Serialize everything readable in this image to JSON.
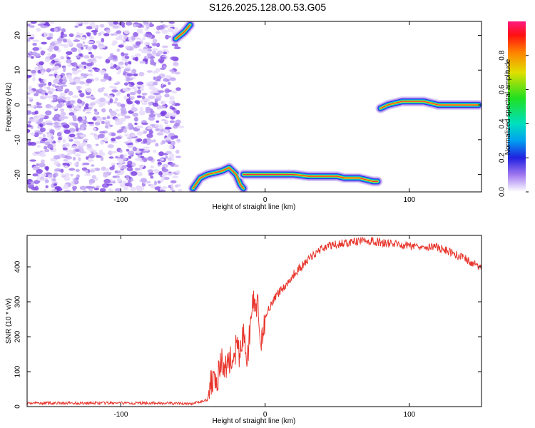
{
  "title": "S126.2025.128.00.53.G05",
  "chart_data": [
    {
      "type": "heatmap",
      "xlabel": "Height of straight line (km)",
      "ylabel": "Frequency (Hz)",
      "xlim": [
        -165,
        150
      ],
      "ylim": [
        -25,
        24
      ],
      "x_ticks": [
        "-100",
        "0",
        "100"
      ],
      "y_ticks": [
        "-20",
        "-10",
        "0",
        "10",
        "20"
      ],
      "colorbar": {
        "label": "Normalized spectral amplitude",
        "range": [
          0,
          1
        ],
        "ticks": [
          "0.0",
          "0.2",
          "0.4",
          "0.6",
          "0.8"
        ]
      },
      "noise_region_x": [
        -165,
        -60
      ],
      "tracks": [
        {
          "x": [
            -52,
            -54,
            -56,
            -59,
            -62
          ],
          "y": [
            23,
            22,
            21,
            20,
            19
          ]
        },
        {
          "x": [
            -50,
            -45,
            -40,
            -35,
            -30,
            -25,
            -20,
            -17,
            -15
          ],
          "y": [
            -24,
            -21,
            -20,
            -19.5,
            -19,
            -18,
            -20,
            -23,
            -24
          ]
        },
        {
          "x": [
            -15,
            -10,
            -5,
            0,
            10,
            20,
            30,
            40,
            50,
            55,
            60,
            65,
            70,
            75,
            78
          ],
          "y": [
            -20,
            -20,
            -20,
            -20,
            -20,
            -20,
            -20.5,
            -20.5,
            -20.5,
            -21,
            -21,
            -21,
            -21.5,
            -22,
            -22
          ]
        },
        {
          "x": [
            80,
            85,
            90,
            95,
            100,
            105,
            110,
            115,
            120,
            130,
            140,
            148
          ],
          "y": [
            -1,
            0,
            0.5,
            1,
            1,
            1,
            1,
            0.5,
            0,
            0,
            0,
            0
          ]
        }
      ]
    },
    {
      "type": "line",
      "xlabel": "Height of straight line (km)",
      "ylabel": "SNR (10 * v/v)",
      "xlim": [
        -165,
        150
      ],
      "ylim": [
        0,
        490
      ],
      "x_ticks": [
        "-100",
        "0",
        "100"
      ],
      "y_ticks": [
        "0",
        "100",
        "200",
        "300",
        "400"
      ],
      "series": [
        {
          "color": "#e8352c",
          "x": [
            -165,
            -150,
            -130,
            -110,
            -90,
            -70,
            -50,
            -40,
            -38,
            -35,
            -33,
            -30,
            -28,
            -25,
            -22,
            -20,
            -18,
            -15,
            -12,
            -10,
            -8,
            -5,
            -3,
            0,
            5,
            10,
            15,
            20,
            25,
            30,
            35,
            40,
            50,
            60,
            70,
            80,
            90,
            100,
            110,
            120,
            130,
            140,
            150
          ],
          "y": [
            10,
            10,
            10,
            10,
            10,
            10,
            8,
            20,
            60,
            100,
            80,
            130,
            100,
            140,
            120,
            170,
            150,
            200,
            140,
            250,
            300,
            280,
            150,
            260,
            300,
            330,
            350,
            380,
            400,
            420,
            440,
            455,
            465,
            470,
            475,
            470,
            465,
            460,
            460,
            455,
            440,
            420,
            395
          ]
        }
      ]
    }
  ]
}
